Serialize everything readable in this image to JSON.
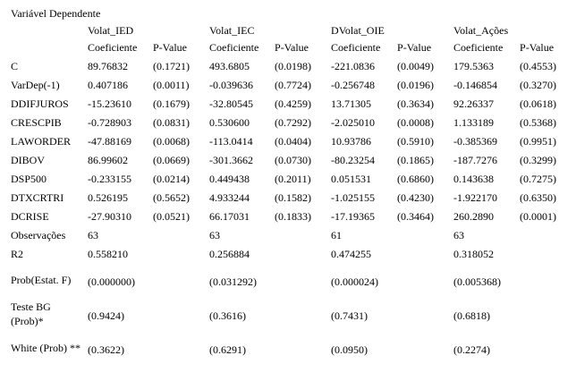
{
  "table": {
    "title": "Variável Dependente",
    "models": [
      "Volat_IED",
      "Volat_IEC",
      "DVolat_OIE",
      "Volat_Ações"
    ],
    "subheaders": [
      "Coeficiente",
      "P-Value"
    ],
    "rows": [
      {
        "label": "C",
        "cells": [
          [
            "89.76832",
            "(0.1721)"
          ],
          [
            "493.6805",
            "(0.0198)"
          ],
          [
            "-221.0836",
            "(0.0049)"
          ],
          [
            "179.5363",
            "(0.4553)"
          ]
        ]
      },
      {
        "label": "VarDep(-1)",
        "cells": [
          [
            "0.407186",
            "(0.0011)"
          ],
          [
            "-0.039636",
            "(0.7724)"
          ],
          [
            "-0.256748",
            "(0.0196)"
          ],
          [
            "-0.146854",
            "(0.3270)"
          ]
        ]
      },
      {
        "label": "DDIFJUROS",
        "cells": [
          [
            "-15.23610",
            "(0.1679)"
          ],
          [
            "-32.80545",
            "(0.4259)"
          ],
          [
            "13.71305",
            "(0.3634)"
          ],
          [
            "92.26337",
            "(0.0618)"
          ]
        ]
      },
      {
        "label": "CRESCPIB",
        "cells": [
          [
            "-0.728903",
            "(0.0831)"
          ],
          [
            "0.530600",
            "(0.7292)"
          ],
          [
            "-2.025010",
            "(0.0008)"
          ],
          [
            "1.133189",
            "(0.5368)"
          ]
        ]
      },
      {
        "label": "LAWORDER",
        "cells": [
          [
            "-47.88169",
            "(0.0068)"
          ],
          [
            "-113.0414",
            "(0.0404)"
          ],
          [
            "10.93786",
            "(0.5910)"
          ],
          [
            "-0.385369",
            "(0.9951)"
          ]
        ]
      },
      {
        "label": "DIBOV",
        "cells": [
          [
            "86.99602",
            "(0.0669)"
          ],
          [
            "-301.3662",
            "(0.0730)"
          ],
          [
            "-80.23254",
            "(0.1865)"
          ],
          [
            "-187.7276",
            "(0.3299)"
          ]
        ]
      },
      {
        "label": "DSP500",
        "cells": [
          [
            "-0.233155",
            "(0.0214)"
          ],
          [
            "0.449438",
            "(0.2011)"
          ],
          [
            "0.051531",
            "(0.6860)"
          ],
          [
            "0.143638",
            "(0.7275)"
          ]
        ]
      },
      {
        "label": "DTXCRTRI",
        "cells": [
          [
            "0.526195",
            "(0.5652)"
          ],
          [
            "4.933244",
            "(0.1582)"
          ],
          [
            "-1.025155",
            "(0.4230)"
          ],
          [
            "-1.922170",
            "(0.6350)"
          ]
        ]
      },
      {
        "label": "DCRISE",
        "cells": [
          [
            "-27.90310",
            "(0.0521)"
          ],
          [
            "66.17031",
            "(0.1833)"
          ],
          [
            "-17.19365",
            "(0.3464)"
          ],
          [
            "260.2890",
            "(0.0001)"
          ]
        ]
      }
    ],
    "stats": [
      {
        "label": "Observações",
        "values": [
          "63",
          "63",
          "61",
          "63"
        ]
      },
      {
        "label": "R2",
        "values": [
          "0.558210",
          "0.256884",
          "0.474255",
          "0.318052"
        ]
      },
      {
        "label": "Prob(Estat. F)",
        "values": [
          "(0.000000)",
          "(0.031292)",
          "(0.000024)",
          "(0.005368)"
        ]
      },
      {
        "label": "Teste BG (Prob)*",
        "values": [
          "(0.9424)",
          "(0.3616)",
          "(0.7431)",
          "(0.6818)"
        ]
      },
      {
        "label": "White (Prob) **",
        "values": [
          "(0.3622)",
          "(0.6291)",
          "(0.0950)",
          "(0.2274)"
        ]
      }
    ]
  }
}
